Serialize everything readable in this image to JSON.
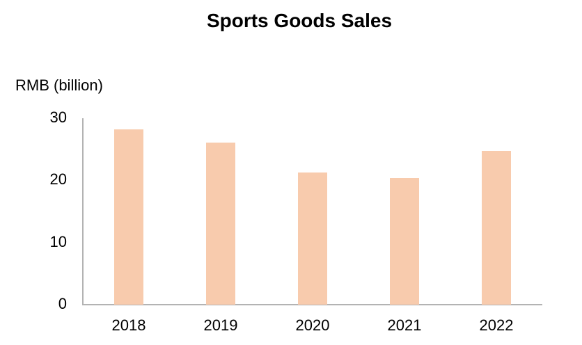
{
  "chart_data": {
    "type": "bar",
    "title": "Sports Goods Sales",
    "ylabel": "RMB (billion)",
    "xlabel": "",
    "categories": [
      "2018",
      "2019",
      "2020",
      "2021",
      "2022"
    ],
    "values": [
      28.2,
      26.1,
      21.3,
      20.4,
      24.7
    ],
    "ylim": [
      0,
      30
    ],
    "yticks": [
      "0",
      "10",
      "20",
      "30"
    ],
    "grid": false,
    "legend": null,
    "bar_color": "#f8cbad"
  }
}
